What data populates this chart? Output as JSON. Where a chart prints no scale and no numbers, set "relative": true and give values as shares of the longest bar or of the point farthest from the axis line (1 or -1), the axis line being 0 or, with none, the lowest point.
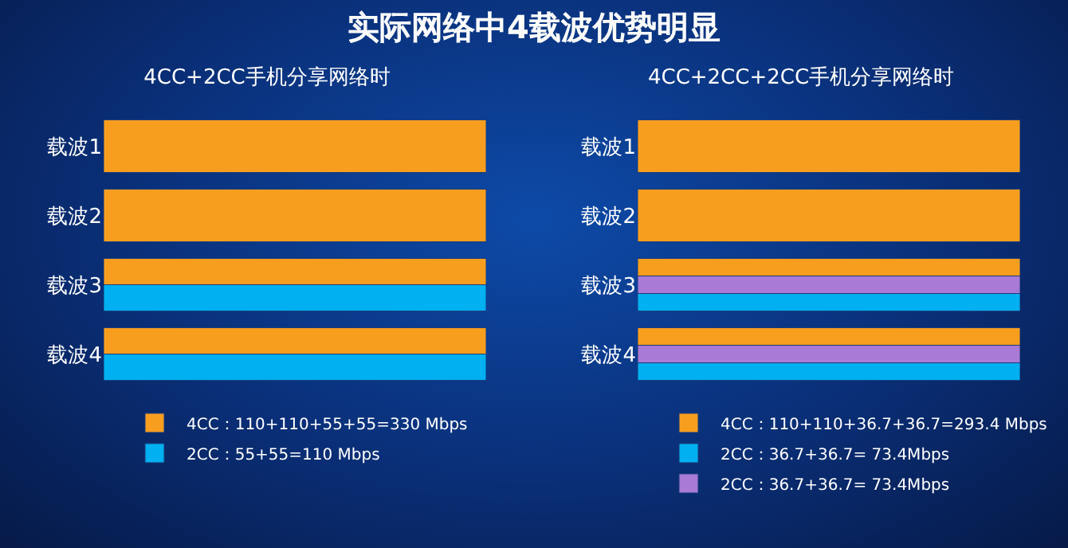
{
  "chart_data": [
    {
      "type": "bar",
      "orientation": "horizontal",
      "relative": true,
      "title": "4CC+2CC手机分享网络时",
      "annotations": [
        "实际网络中4载波优势明显"
      ],
      "categories": [
        "载波1",
        "载波2",
        "载波3",
        "载波4"
      ],
      "legend": "bottom",
      "series": [
        {
          "name": "4CC：110+110+55+55=330 Mbps",
          "color": "#f89e1f",
          "values": [
            1,
            1,
            1,
            1
          ]
        },
        {
          "name": "2CC：55+55=110 Mbps",
          "color": "#00b0f0",
          "values": [
            null,
            null,
            1,
            1
          ]
        }
      ]
    },
    {
      "type": "bar",
      "orientation": "horizontal",
      "relative": true,
      "title": "4CC+2CC+2CC手机分享网络时",
      "categories": [
        "载波1",
        "载波2",
        "载波3",
        "载波4"
      ],
      "legend": "bottom",
      "series": [
        {
          "name": "4CC：110+110+36.7+36.7=293.4 Mbps",
          "color": "#f89e1f",
          "values": [
            1,
            1,
            1,
            1
          ]
        },
        {
          "name": "2CC：36.7+36.7= 73.4Mbps",
          "color": "#00b0f0",
          "values": [
            null,
            null,
            1,
            1
          ]
        },
        {
          "name": "2CC：36.7+36.7= 73.4Mbps",
          "color": "#a97ad6",
          "values": [
            null,
            null,
            1,
            1
          ]
        }
      ]
    }
  ]
}
